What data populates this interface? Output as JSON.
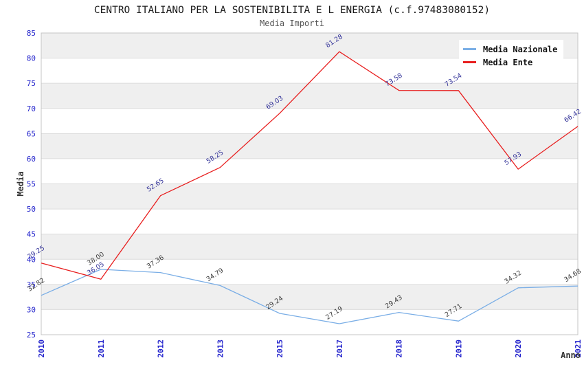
{
  "header": {
    "title": "CENTRO ITALIANO PER LA SOSTENIBILITA E L ENERGIA (c.f.97483080152)",
    "subtitle": "Media Importi"
  },
  "chart_data": {
    "type": "line",
    "title": "CENTRO ITALIANO PER LA SOSTENIBILITA E L ENERGIA (c.f.97483080152)",
    "subtitle": "Media Importi",
    "xlabel": "Anno",
    "ylabel": "Media",
    "categories": [
      "2010",
      "2011",
      "2012",
      "2013",
      "2015",
      "2017",
      "2018",
      "2019",
      "2020",
      "2021"
    ],
    "series": [
      {
        "name": "Media Nazionale",
        "color": "#7aaee6",
        "label_color": "#3c3c3c",
        "values": [
          32.82,
          38.0,
          37.36,
          34.79,
          29.24,
          27.19,
          29.43,
          27.71,
          34.32,
          34.68
        ]
      },
      {
        "name": "Media Ente",
        "color": "#e81e1e",
        "label_color": "#333399",
        "values": [
          39.25,
          36.05,
          52.65,
          58.25,
          69.03,
          81.28,
          73.58,
          73.54,
          57.93,
          66.42
        ]
      }
    ],
    "ylim": [
      25,
      85
    ],
    "ytick_step": 5,
    "grid": true,
    "legend_position": "top-right",
    "band_colors": [
      "#efefef",
      "#ffffff"
    ],
    "gridline_color": "#dcdcdc",
    "border_color": "#c4c4c4",
    "tick_color": "#2323cc"
  }
}
